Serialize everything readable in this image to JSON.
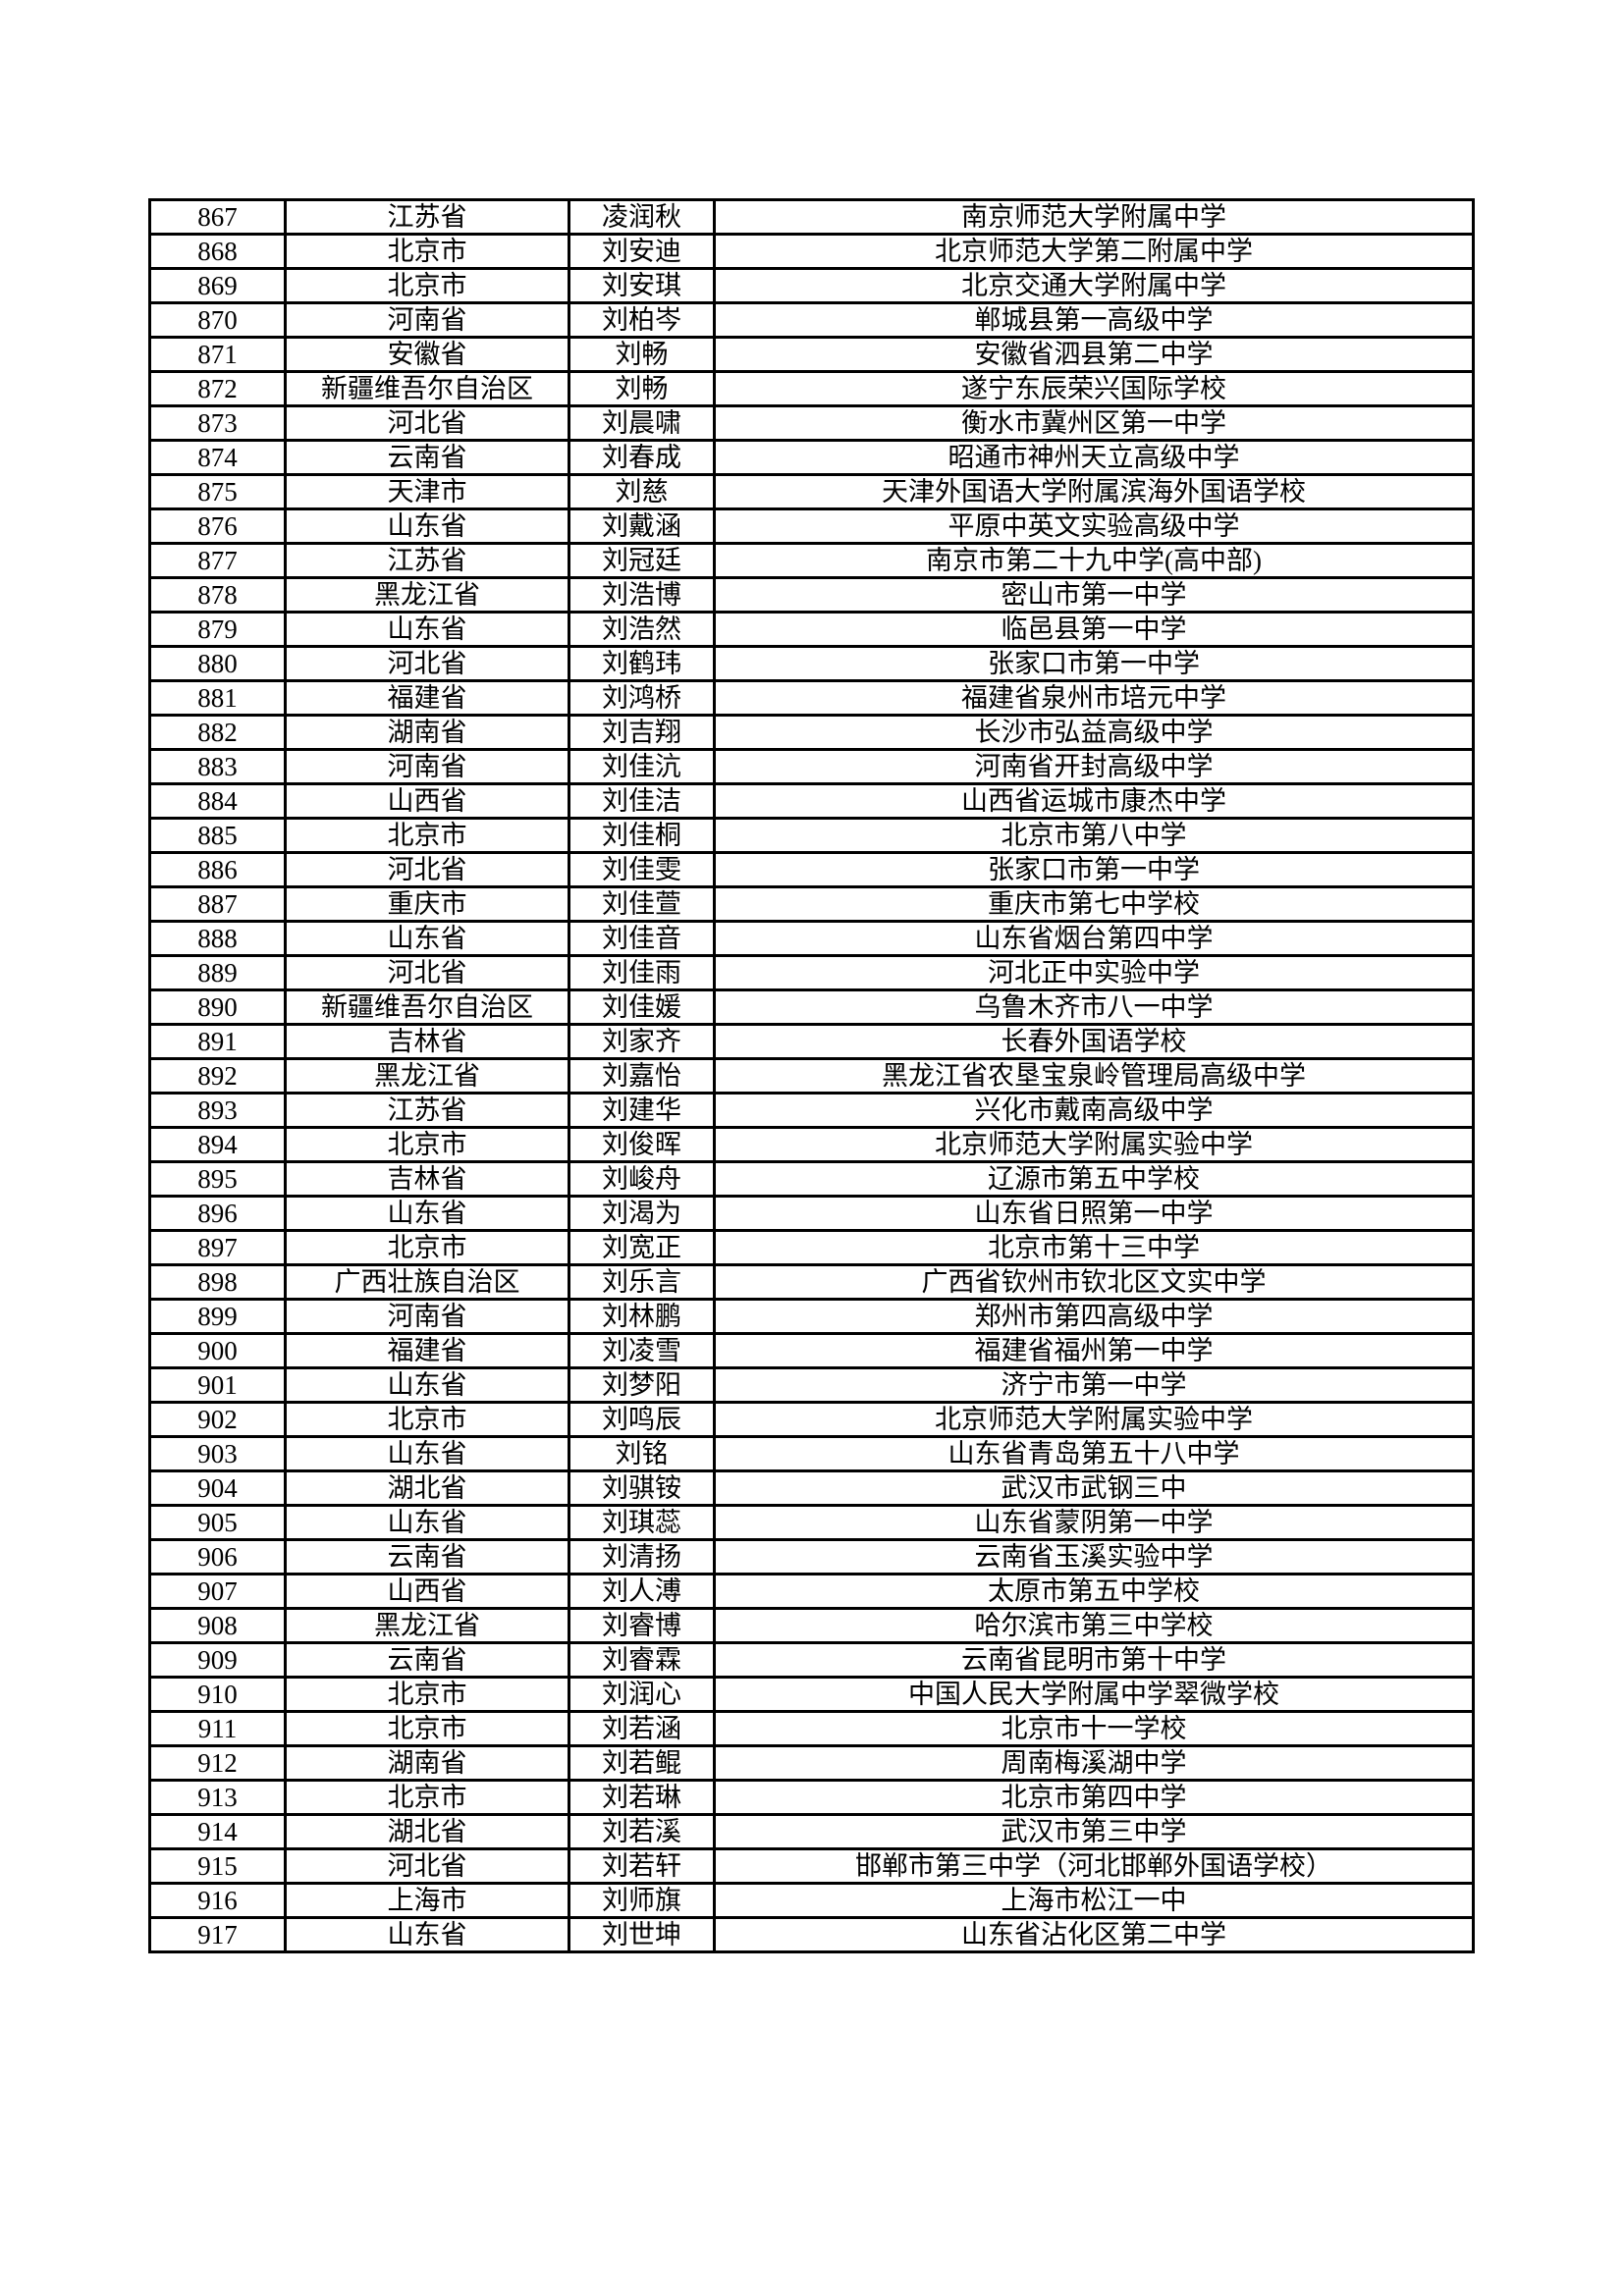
{
  "table": {
    "rows": [
      [
        "867",
        "江苏省",
        "凌润秋",
        "南京师范大学附属中学"
      ],
      [
        "868",
        "北京市",
        "刘安迪",
        "北京师范大学第二附属中学"
      ],
      [
        "869",
        "北京市",
        "刘安琪",
        "北京交通大学附属中学"
      ],
      [
        "870",
        "河南省",
        "刘柏岑",
        "郸城县第一高级中学"
      ],
      [
        "871",
        "安徽省",
        "刘畅",
        "安徽省泗县第二中学"
      ],
      [
        "872",
        "新疆维吾尔自治区",
        "刘畅",
        "遂宁东辰荣兴国际学校"
      ],
      [
        "873",
        "河北省",
        "刘晨啸",
        "衡水市冀州区第一中学"
      ],
      [
        "874",
        "云南省",
        "刘春成",
        "昭通市神州天立高级中学"
      ],
      [
        "875",
        "天津市",
        "刘慈",
        "天津外国语大学附属滨海外国语学校"
      ],
      [
        "876",
        "山东省",
        "刘戴涵",
        "平原中英文实验高级中学"
      ],
      [
        "877",
        "江苏省",
        "刘冠廷",
        "南京市第二十九中学(高中部)"
      ],
      [
        "878",
        "黑龙江省",
        "刘浩博",
        "密山市第一中学"
      ],
      [
        "879",
        "山东省",
        "刘浩然",
        "临邑县第一中学"
      ],
      [
        "880",
        "河北省",
        "刘鹤玮",
        "张家口市第一中学"
      ],
      [
        "881",
        "福建省",
        "刘鸿桥",
        "福建省泉州市培元中学"
      ],
      [
        "882",
        "湖南省",
        "刘吉翔",
        "长沙市弘益高级中学"
      ],
      [
        "883",
        "河南省",
        "刘佳沆",
        "河南省开封高级中学"
      ],
      [
        "884",
        "山西省",
        "刘佳洁",
        "山西省运城市康杰中学"
      ],
      [
        "885",
        "北京市",
        "刘佳桐",
        "北京市第八中学"
      ],
      [
        "886",
        "河北省",
        "刘佳雯",
        "张家口市第一中学"
      ],
      [
        "887",
        "重庆市",
        "刘佳萱",
        "重庆市第七中学校"
      ],
      [
        "888",
        "山东省",
        "刘佳音",
        "山东省烟台第四中学"
      ],
      [
        "889",
        "河北省",
        "刘佳雨",
        "河北正中实验中学"
      ],
      [
        "890",
        "新疆维吾尔自治区",
        "刘佳媛",
        "乌鲁木齐市八一中学"
      ],
      [
        "891",
        "吉林省",
        "刘家齐",
        "长春外国语学校"
      ],
      [
        "892",
        "黑龙江省",
        "刘嘉怡",
        "黑龙江省农垦宝泉岭管理局高级中学"
      ],
      [
        "893",
        "江苏省",
        "刘建华",
        "兴化市戴南高级中学"
      ],
      [
        "894",
        "北京市",
        "刘俊晖",
        "北京师范大学附属实验中学"
      ],
      [
        "895",
        "吉林省",
        "刘峻舟",
        "辽源市第五中学校"
      ],
      [
        "896",
        "山东省",
        "刘渴为",
        "山东省日照第一中学"
      ],
      [
        "897",
        "北京市",
        "刘宽正",
        "北京市第十三中学"
      ],
      [
        "898",
        "广西壮族自治区",
        "刘乐言",
        "广西省钦州市钦北区文实中学"
      ],
      [
        "899",
        "河南省",
        "刘林鹏",
        "郑州市第四高级中学"
      ],
      [
        "900",
        "福建省",
        "刘凌雪",
        "福建省福州第一中学"
      ],
      [
        "901",
        "山东省",
        "刘梦阳",
        "济宁市第一中学"
      ],
      [
        "902",
        "北京市",
        "刘鸣辰",
        "北京师范大学附属实验中学"
      ],
      [
        "903",
        "山东省",
        "刘铭",
        "山东省青岛第五十八中学"
      ],
      [
        "904",
        "湖北省",
        "刘骐铵",
        "武汉市武钢三中"
      ],
      [
        "905",
        "山东省",
        "刘琪蕊",
        "山东省蒙阴第一中学"
      ],
      [
        "906",
        "云南省",
        "刘清扬",
        "云南省玉溪实验中学"
      ],
      [
        "907",
        "山西省",
        "刘人溥",
        "太原市第五中学校"
      ],
      [
        "908",
        "黑龙江省",
        "刘睿博",
        "哈尔滨市第三中学校"
      ],
      [
        "909",
        "云南省",
        "刘睿霖",
        "云南省昆明市第十中学"
      ],
      [
        "910",
        "北京市",
        "刘润心",
        "中国人民大学附属中学翠微学校"
      ],
      [
        "911",
        "北京市",
        "刘若涵",
        "北京市十一学校"
      ],
      [
        "912",
        "湖南省",
        "刘若鲲",
        "周南梅溪湖中学"
      ],
      [
        "913",
        "北京市",
        "刘若琳",
        "北京市第四中学"
      ],
      [
        "914",
        "湖北省",
        "刘若溪",
        "武汉市第三中学"
      ],
      [
        "915",
        "河北省",
        "刘若轩",
        "邯郸市第三中学（河北邯郸外国语学校）"
      ],
      [
        "916",
        "上海市",
        "刘师旗",
        "上海市松江一中"
      ],
      [
        "917",
        "山东省",
        "刘世坤",
        "山东省沾化区第二中学"
      ]
    ]
  }
}
